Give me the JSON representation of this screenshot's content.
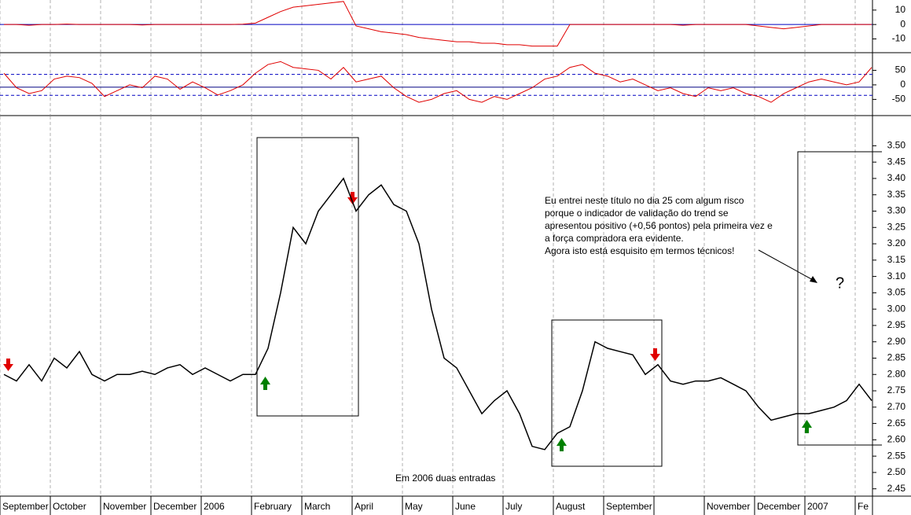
{
  "chart_data": [
    {
      "type": "line",
      "series": [
        {
          "color": "#e00000",
          "values": [
            0,
            0,
            -0.5,
            0,
            0,
            0.3,
            0,
            0,
            0,
            0,
            0,
            -0.3,
            0,
            0,
            0,
            0,
            0,
            0,
            0,
            0.2,
            1,
            5,
            9,
            12,
            13,
            14,
            15,
            16,
            -1,
            -3,
            -5,
            -6,
            -7,
            -9,
            -10,
            -11,
            -12,
            -12,
            -13,
            -13,
            -14,
            -14,
            -15,
            -15,
            -15,
            0,
            0,
            0,
            0,
            0,
            0,
            0,
            0,
            0,
            -0.5,
            0,
            0,
            0,
            0,
            0,
            -1,
            -2,
            -3,
            -2,
            -1,
            0,
            0,
            0,
            0,
            0
          ]
        }
      ],
      "hlines": [
        {
          "value": 0,
          "color": "#0000c0"
        }
      ],
      "ylim": [
        -19,
        17
      ],
      "yticks": [
        10,
        0,
        -10
      ]
    },
    {
      "type": "line",
      "series": [
        {
          "color": "#e00000",
          "values": [
            40,
            -10,
            -30,
            -20,
            20,
            30,
            25,
            5,
            -40,
            -20,
            0,
            -10,
            30,
            20,
            -15,
            10,
            -10,
            -35,
            -20,
            0,
            40,
            70,
            80,
            60,
            55,
            50,
            20,
            60,
            10,
            20,
            30,
            -10,
            -40,
            -60,
            -50,
            -30,
            -20,
            -50,
            -60,
            -40,
            -50,
            -30,
            -10,
            20,
            30,
            60,
            70,
            40,
            30,
            10,
            20,
            0,
            -20,
            -10,
            -30,
            -40,
            -10,
            -20,
            -10,
            -30,
            -40,
            -60,
            -30,
            -10,
            10,
            20,
            10,
            0,
            10,
            60
          ]
        }
      ],
      "hlines": [
        {
          "value": 36,
          "color": "#0000c0",
          "dashed": true
        },
        {
          "value": -36,
          "color": "#0000c0",
          "dashed": true
        },
        {
          "value": -8,
          "color": "#000080"
        }
      ],
      "ylim": [
        -103,
        108
      ],
      "yticks": [
        50,
        0,
        -50
      ]
    },
    {
      "type": "line",
      "categories": [
        "September",
        null,
        null,
        null,
        "October",
        null,
        null,
        null,
        "November",
        null,
        null,
        null,
        "December",
        null,
        null,
        null,
        "2006",
        null,
        null,
        null,
        "February",
        null,
        null,
        null,
        "March",
        null,
        null,
        null,
        "April",
        null,
        null,
        null,
        "May",
        null,
        null,
        null,
        "June",
        null,
        null,
        null,
        "July",
        null,
        null,
        null,
        "August",
        null,
        null,
        null,
        "September",
        null,
        null,
        null,
        null,
        null,
        null,
        null,
        "November",
        null,
        null,
        null,
        "December",
        null,
        null,
        null,
        "2007",
        null,
        null,
        null,
        "Fe",
        null
      ],
      "values": [
        2.8,
        2.78,
        2.83,
        2.78,
        2.85,
        2.82,
        2.87,
        2.8,
        2.78,
        2.8,
        2.8,
        2.81,
        2.8,
        2.82,
        2.83,
        2.8,
        2.82,
        2.8,
        2.78,
        2.8,
        2.8,
        2.88,
        3.05,
        3.25,
        3.2,
        3.3,
        3.35,
        3.4,
        3.3,
        3.35,
        3.38,
        3.32,
        3.3,
        3.2,
        3.0,
        2.85,
        2.82,
        2.75,
        2.68,
        2.72,
        2.75,
        2.68,
        2.58,
        2.57,
        2.62,
        2.64,
        2.75,
        2.9,
        2.88,
        2.87,
        2.86,
        2.8,
        2.83,
        2.78,
        2.77,
        2.78,
        2.78,
        2.79,
        2.77,
        2.75,
        2.7,
        2.66,
        2.67,
        2.68,
        2.68,
        2.69,
        2.7,
        2.72,
        2.77,
        2.72
      ],
      "color": "#000000",
      "ylim": [
        2.43,
        3.59
      ],
      "yticks": [
        2.45,
        {
          "value": 2.5,
          "label": "2.50"
        },
        2.55,
        {
          "value": 2.6,
          "label": "2.60"
        },
        2.65,
        {
          "value": 2.7,
          "label": "2.70"
        },
        2.75,
        {
          "value": 2.8,
          "label": "2.80"
        },
        2.85,
        {
          "value": 2.9,
          "label": "2.90"
        },
        2.95,
        {
          "value": 3.0,
          "label": "3.00"
        },
        3.05,
        {
          "value": 3.1,
          "label": "3.10"
        },
        3.15,
        {
          "value": 3.2,
          "label": "3.20"
        },
        3.25,
        {
          "value": 3.3,
          "label": "3.30"
        },
        3.35,
        {
          "value": 3.4,
          "label": "3.40"
        },
        3.45,
        {
          "value": 3.5,
          "label": "3.50"
        }
      ],
      "grid": true,
      "note": [
        "Eu entrei neste título no dia 25 com algum risco",
        "porque o indicador de validação do trend se",
        "apresentou positivo (+0,56 pontos) pela primeira vez e",
        "a força compradora era evidente.",
        "Agora isto está esquisito em termos técnicos!"
      ],
      "caption": "Em 2006 duas entradas",
      "question": "?"
    }
  ]
}
